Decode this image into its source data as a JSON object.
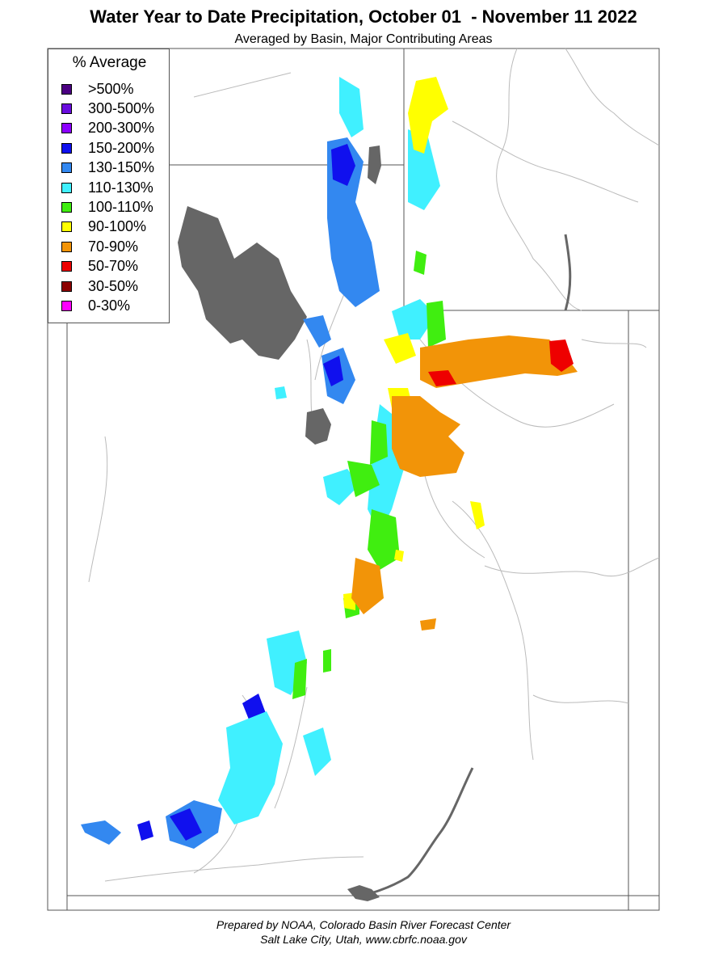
{
  "title": "Water Year to Date Precipitation, October 01  - November 11 2022",
  "subtitle": "Averaged by Basin, Major Contributing Areas",
  "legend": {
    "title": "% Average",
    "items": [
      {
        "label": ">500%",
        "color": "#4b0082"
      },
      {
        "label": "300-500%",
        "color": "#6a0dde"
      },
      {
        "label": "200-300%",
        "color": "#8b00ff"
      },
      {
        "label": "150-200%",
        "color": "#1010ee"
      },
      {
        "label": "130-150%",
        "color": "#3388f0"
      },
      {
        "label": "110-130%",
        "color": "#40f0ff"
      },
      {
        "label": "100-110%",
        "color": "#40ee10"
      },
      {
        "label": "90-100%",
        "color": "#ffff00"
      },
      {
        "label": "70-90%",
        "color": "#f29408"
      },
      {
        "label": "50-70%",
        "color": "#ee0000"
      },
      {
        "label": "30-50%",
        "color": "#8b0000"
      },
      {
        "label": "0-30%",
        "color": "#ff00ff"
      }
    ]
  },
  "map": {
    "lake_color": "#666666",
    "boundary_color": "#555555",
    "river_color": "#bbbbbb"
  },
  "footer": {
    "line1": "Prepared by NOAA, Colorado Basin River Forecast Center",
    "line2": "Salt Lake City, Utah, www.cbrfc.noaa.gov"
  }
}
